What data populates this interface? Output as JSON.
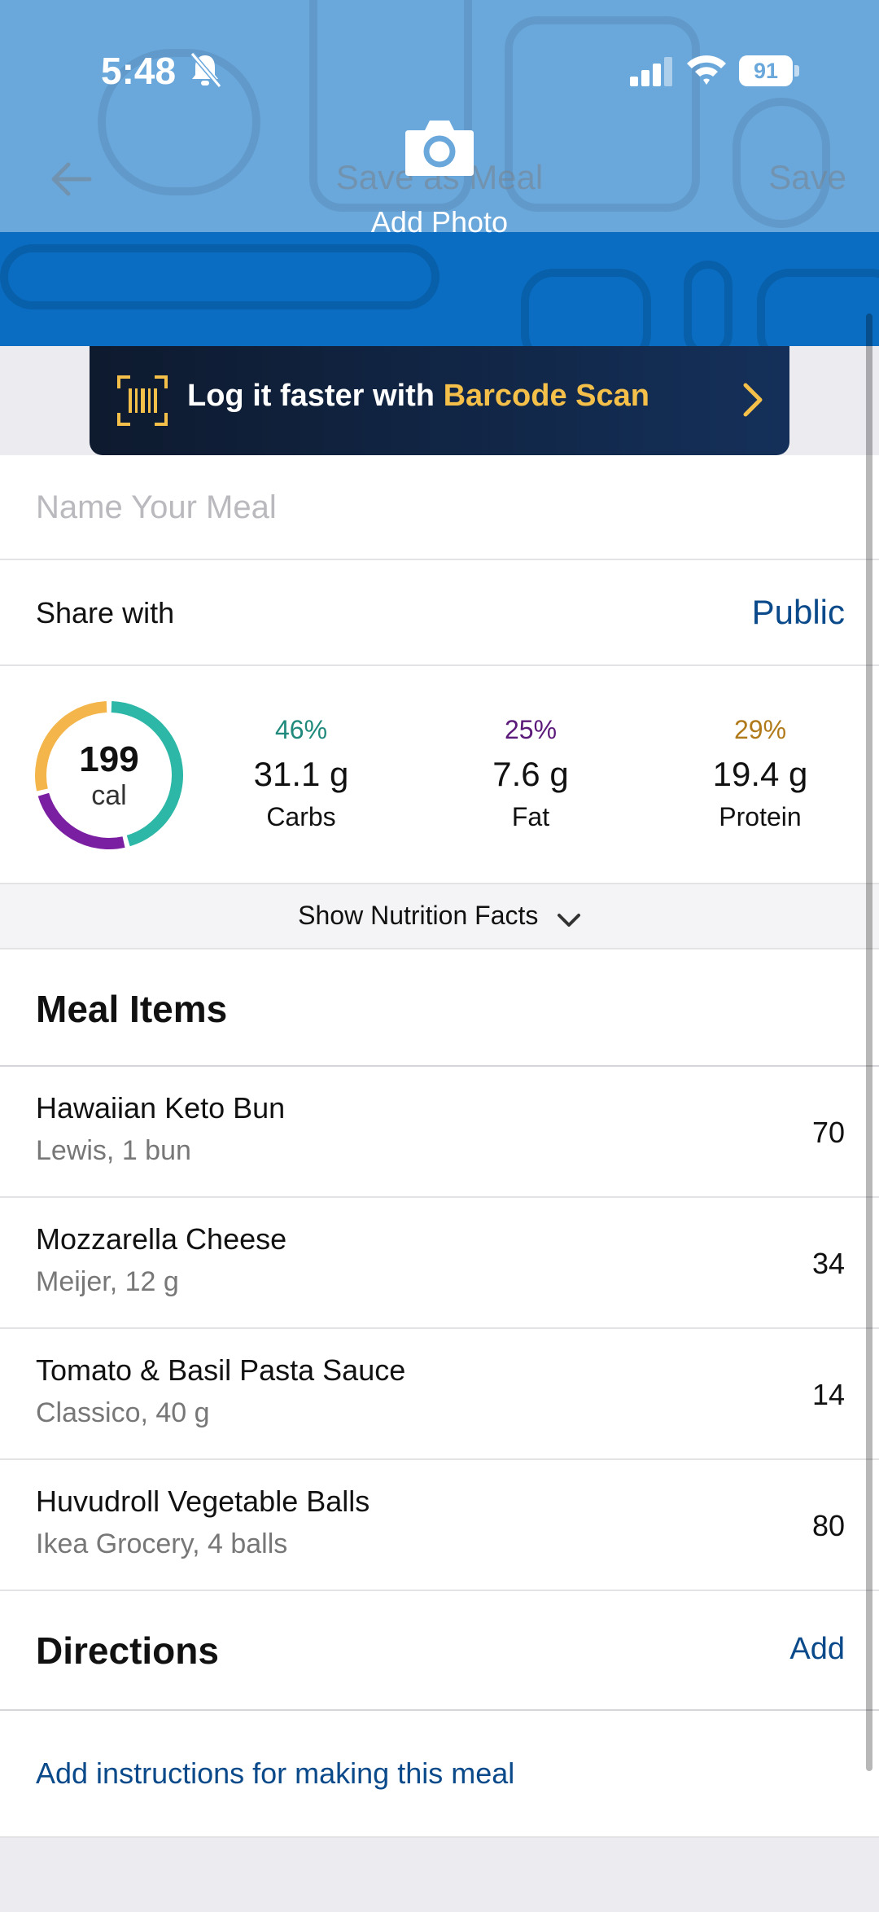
{
  "status_bar": {
    "time": "5:48",
    "battery": "91"
  },
  "nav": {
    "title": "Save as Meal",
    "save_label": "Save",
    "add_photo_label": "Add Photo"
  },
  "banner": {
    "text": "Log it faster with ",
    "highlight": "Barcode Scan"
  },
  "meal_name": {
    "placeholder": "Name Your Meal",
    "value": ""
  },
  "share": {
    "label": "Share with",
    "value": "Public"
  },
  "macros": {
    "calories": "199",
    "calories_unit": "cal",
    "carbs": {
      "pct": "46%",
      "grams": "31.1 g",
      "label": "Carbs",
      "fraction": 0.46,
      "color": "#2cb7a7"
    },
    "fat": {
      "pct": "25%",
      "grams": "7.6 g",
      "label": "Fat",
      "fraction": 0.25,
      "color": "#7b1fa2"
    },
    "protein": {
      "pct": "29%",
      "grams": "19.4 g",
      "label": "Protein",
      "fraction": 0.29,
      "color": "#f4b54a"
    }
  },
  "nutrition_toggle": {
    "label": "Show Nutrition Facts"
  },
  "meal_items": {
    "title": "Meal Items",
    "items": [
      {
        "name": "Hawaiian Keto Bun",
        "detail": "Lewis, 1 bun",
        "calories": "70"
      },
      {
        "name": "Mozzarella Cheese",
        "detail": "Meijer, 12 g",
        "calories": "34"
      },
      {
        "name": "Tomato & Basil Pasta Sauce",
        "detail": "Classico, 40 g",
        "calories": "14"
      },
      {
        "name": "Huvudroll Vegetable Balls",
        "detail": "Ikea Grocery, 4 balls",
        "calories": "80"
      }
    ]
  },
  "directions": {
    "title": "Directions",
    "add_label": "Add",
    "instructions_link": "Add instructions for making this meal"
  },
  "colors": {
    "header_top": "#6aa8dc",
    "header_bottom": "#0a6dc2",
    "link": "#0b4a8a",
    "banner_highlight": "#f4c04a"
  }
}
